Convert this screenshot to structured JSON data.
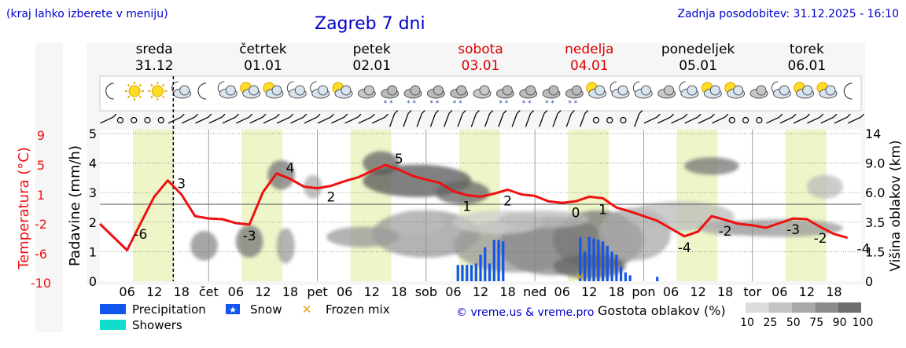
{
  "header": {
    "hint": "(kraj lahko izberete v meniju)",
    "title": "Zagreb 7 dni",
    "updated": "Zadnja posodobitev: 31.12.2025 - 16:10"
  },
  "colors": {
    "temperature": "#ee1111",
    "weekend": "#dd0000",
    "precipitation": "#1155ee",
    "showers": "#11ddcc",
    "daylight": "#eef5c8",
    "credit": "#0000cc"
  },
  "days": [
    {
      "name": "sreda",
      "date": "31.12",
      "weekend": false
    },
    {
      "name": "četrtek",
      "date": "01.01",
      "weekend": false
    },
    {
      "name": "petek",
      "date": "02.01",
      "weekend": false
    },
    {
      "name": "sobota",
      "date": "03.01",
      "weekend": true
    },
    {
      "name": "nedelja",
      "date": "04.01",
      "weekend": true
    },
    {
      "name": "ponedeljek",
      "date": "05.01",
      "weekend": false
    },
    {
      "name": "torek",
      "date": "06.01",
      "weekend": false
    }
  ],
  "weather_icons": [
    "moon",
    "sun",
    "sun",
    "cloud-moon",
    "moon",
    "cloud-moon",
    "sun-cloud",
    "sun-cloud",
    "cloud-moon",
    "cloud-moon",
    "sun-cloud",
    "cloud",
    "snow-cloud",
    "snow-cloud",
    "snow-cloud",
    "snow-cloud",
    "cloud",
    "snow-cloud",
    "snow-cloud",
    "snow-cloud",
    "snow-cloud",
    "sun-cloud",
    "cloud-moon",
    "cloud-moon",
    "cloud",
    "cloud-moon",
    "sun-cloud",
    "sun-cloud",
    "cloud",
    "cloud-moon",
    "sun-cloud",
    "sun-cloud",
    "moon"
  ],
  "axes": {
    "left_temp_label": "Temperatura (°C)",
    "left_temp_ticks": [
      "9",
      "5",
      "1",
      "-2",
      "-6",
      "-10"
    ],
    "left_precip_label": "Padavine (mm/h)",
    "left_precip_ticks": [
      "5",
      "4",
      "3",
      "2",
      "1",
      "0"
    ],
    "right_label": "Višina oblakov (km)",
    "right_ticks": [
      "14",
      "9.0",
      "6.0",
      "3.5",
      "1.5",
      "0"
    ]
  },
  "x_tick_labels": [
    "06",
    "12",
    "18",
    "čet",
    "06",
    "12",
    "18",
    "pet",
    "06",
    "12",
    "18",
    "sob",
    "06",
    "12",
    "18",
    "ned",
    "06",
    "12",
    "18",
    "pon",
    "06",
    "12",
    "18",
    "tor",
    "06",
    "12",
    "18"
  ],
  "legend": {
    "precipitation": "Precipitation",
    "snow": "Snow",
    "frozen_mix": "Frozen mix",
    "showers": "Showers",
    "credit": "© vreme.us & vreme.pro",
    "cloud_density_label": "Gostota oblakov (%)",
    "cloud_density_ticks": [
      "10",
      "25",
      "50",
      "75",
      "90",
      "100"
    ]
  },
  "chart_data": {
    "type": "line",
    "title": "Zagreb 7 dni",
    "x_unit": "hours from 31.12 00:00",
    "temperature": {
      "unit": "°C",
      "ylim": [
        -10,
        9
      ],
      "x": [
        0,
        6,
        9,
        12,
        15,
        18,
        21,
        24,
        27,
        30,
        33,
        36,
        39,
        42,
        45,
        48,
        51,
        54,
        57,
        60,
        63,
        66,
        69,
        72,
        75,
        78,
        81,
        84,
        87,
        90,
        93,
        96,
        99,
        102,
        105,
        108,
        111,
        114,
        117,
        120,
        123,
        126,
        129,
        132,
        135,
        138,
        141,
        144,
        147,
        150,
        153,
        156,
        159,
        162,
        165
      ],
      "values": [
        -2.6,
        -6.0,
        -2.5,
        0.9,
        3.0,
        1.2,
        -1.6,
        -1.9,
        -2.0,
        -2.5,
        -2.7,
        1.5,
        3.9,
        3.2,
        2.2,
        2.0,
        2.3,
        2.9,
        3.4,
        4.2,
        5.0,
        4.4,
        3.6,
        3.1,
        2.7,
        1.6,
        1.1,
        0.9,
        1.3,
        1.8,
        1.2,
        1.0,
        0.3,
        0.1,
        0.3,
        0.9,
        0.7,
        -0.5,
        -1.0,
        -1.6,
        -2.2,
        -3.2,
        -4.2,
        -3.6,
        -1.6,
        -2.1,
        -2.6,
        -2.8,
        -3.1,
        -2.5,
        -1.9,
        -2.0,
        -3.0,
        -3.9,
        -4.4
      ],
      "labels": [
        {
          "x": 9,
          "value": "-6"
        },
        {
          "x": 18,
          "value": "3"
        },
        {
          "x": 33,
          "value": "-3"
        },
        {
          "x": 42,
          "value": "4"
        },
        {
          "x": 51,
          "value": "2"
        },
        {
          "x": 66,
          "value": "5"
        },
        {
          "x": 81,
          "value": "1"
        },
        {
          "x": 90,
          "value": "2"
        },
        {
          "x": 105,
          "value": "0"
        },
        {
          "x": 111,
          "value": "1"
        },
        {
          "x": 129,
          "value": "-4"
        },
        {
          "x": 138,
          "value": "-2"
        },
        {
          "x": 153,
          "value": "-3"
        },
        {
          "x": 159,
          "value": "-2"
        },
        {
          "x": 174,
          "value": "-4"
        }
      ]
    },
    "precipitation": {
      "unit": "mm/h",
      "ylim": [
        0,
        5
      ],
      "bars": [
        {
          "x": 79,
          "value": 0.55,
          "type": "rain"
        },
        {
          "x": 80,
          "value": 0.55,
          "type": "rain"
        },
        {
          "x": 81,
          "value": 0.55,
          "type": "rain"
        },
        {
          "x": 82,
          "value": 0.55,
          "type": "rain"
        },
        {
          "x": 83,
          "value": 0.6,
          "type": "rain"
        },
        {
          "x": 84,
          "value": 0.9,
          "type": "rain"
        },
        {
          "x": 85,
          "value": 1.15,
          "type": "rain"
        },
        {
          "x": 86,
          "value": 0.6,
          "type": "rain"
        },
        {
          "x": 87,
          "value": 1.4,
          "type": "rain"
        },
        {
          "x": 88,
          "value": 1.4,
          "type": "rain"
        },
        {
          "x": 89,
          "value": 1.35,
          "type": "rain"
        },
        {
          "x": 106,
          "value": 1.5,
          "type": "rain"
        },
        {
          "x": 107,
          "value": 1.0,
          "type": "rain"
        },
        {
          "x": 108,
          "value": 1.5,
          "type": "rain"
        },
        {
          "x": 109,
          "value": 1.45,
          "type": "rain"
        },
        {
          "x": 110,
          "value": 1.4,
          "type": "rain"
        },
        {
          "x": 111,
          "value": 1.35,
          "type": "rain"
        },
        {
          "x": 112,
          "value": 1.2,
          "type": "rain"
        },
        {
          "x": 113,
          "value": 1.0,
          "type": "rain"
        },
        {
          "x": 114,
          "value": 0.9,
          "type": "rain"
        },
        {
          "x": 115,
          "value": 0.5,
          "type": "rain"
        },
        {
          "x": 116,
          "value": 0.3,
          "type": "rain"
        },
        {
          "x": 117,
          "value": 0.2,
          "type": "rain"
        },
        {
          "x": 123,
          "value": 0.15,
          "type": "rain"
        }
      ],
      "frozen_mix_at": [
        106
      ]
    },
    "cloud_height": {
      "unit": "km",
      "ticks": [
        0,
        1.5,
        3.5,
        6.0,
        9.0,
        14
      ]
    },
    "now_marker_x": 16.2,
    "grid": true
  }
}
